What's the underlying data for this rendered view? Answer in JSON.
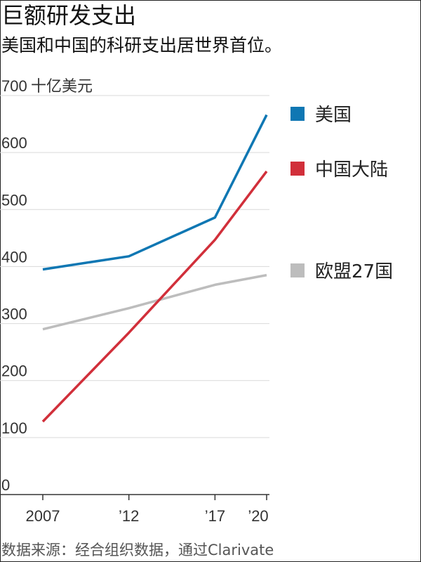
{
  "title": "巨额研发支出",
  "subtitle": "美国和中国的科研支出居世界首位。",
  "source": "数据来源：经合组织数据，通过Clarivate",
  "colors": {
    "us": "#0f77b3",
    "china": "#d12f3a",
    "eu": "#bdbdbd",
    "grid": "#d9d9d9",
    "axis": "#333333"
  },
  "chart_data": {
    "type": "line",
    "x": [
      2007,
      2012,
      2017,
      2020
    ],
    "x_tick_labels": [
      "2007",
      "’12",
      "’17",
      "’20"
    ],
    "y_unit_label": "十亿美元",
    "y_ticks": [
      0,
      100,
      200,
      300,
      400,
      500,
      600,
      700
    ],
    "ylim": [
      0,
      700
    ],
    "grid": true,
    "legend_position": "right",
    "series": [
      {
        "name": "美国",
        "color": "#0f77b3",
        "values": [
          395,
          418,
          486,
          666
        ]
      },
      {
        "name": "中国大陆",
        "color": "#d12f3a",
        "values": [
          128,
          284,
          447,
          567
        ]
      },
      {
        "name": "欧盟27国",
        "color": "#bdbdbd",
        "values": [
          290,
          327,
          368,
          385
        ]
      }
    ]
  }
}
